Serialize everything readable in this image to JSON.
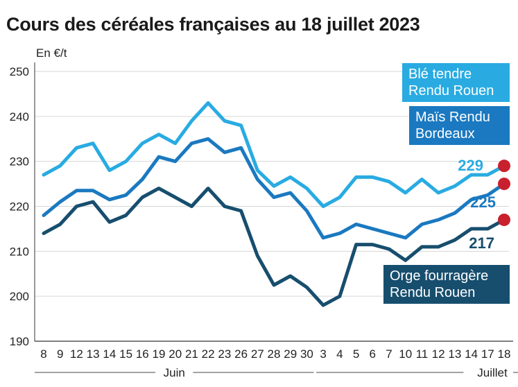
{
  "chart_data": {
    "type": "line",
    "title": "Cours des céréales françaises au 18 juillet 2023",
    "ylabel": "En €/t",
    "ylim": [
      190,
      250
    ],
    "yticks": [
      190,
      200,
      210,
      220,
      230,
      240,
      250
    ],
    "grid": true,
    "categories": [
      "8",
      "9",
      "12",
      "13",
      "14",
      "15",
      "16",
      "19",
      "20",
      "21",
      "22",
      "23",
      "26",
      "27",
      "28",
      "29",
      "30",
      "3",
      "4",
      "5",
      "6",
      "7",
      "10",
      "11",
      "12",
      "13",
      "14",
      "17",
      "18"
    ],
    "months": [
      {
        "label": "Juin",
        "from": 0,
        "to": 16
      },
      {
        "label": "Juillet",
        "from": 17,
        "to": 28
      }
    ],
    "series": [
      {
        "name": "Blé tendre Rendu Rouen",
        "color": "#29abe2",
        "label_lines": [
          "Blé tendre",
          "Rendu Rouen"
        ],
        "end_label": "229",
        "values": [
          227,
          229,
          233,
          234,
          228,
          230,
          234,
          236,
          234,
          239,
          243,
          239,
          238,
          228,
          224.5,
          226.5,
          224,
          220,
          222,
          226.5,
          226.5,
          225.5,
          223,
          226,
          223,
          224.5,
          227,
          227,
          229
        ]
      },
      {
        "name": "Maïs Rendu Bordeaux",
        "color": "#1a79c0",
        "label_lines": [
          "Maïs Rendu",
          "Bordeaux"
        ],
        "end_label": "225",
        "values": [
          218,
          221,
          223.5,
          223.5,
          221.5,
          222.5,
          226,
          231,
          230,
          234,
          235,
          232,
          233,
          226,
          222,
          223,
          219,
          213,
          214,
          216,
          215,
          214,
          213,
          216,
          217,
          218.5,
          221.5,
          222.5,
          225
        ]
      },
      {
        "name": "Orge fourragère Rendu Rouen",
        "color": "#174e6e",
        "label_lines": [
          "Orge fourragère",
          "Rendu Rouen"
        ],
        "end_label": "217",
        "values": [
          214,
          216,
          220,
          221,
          216.5,
          218,
          222,
          224,
          222,
          220,
          224,
          220,
          219,
          209,
          202.5,
          204.5,
          202,
          198,
          200,
          211.5,
          211.5,
          210.5,
          208,
          211,
          211,
          212.5,
          215,
          215,
          217
        ]
      }
    ],
    "end_marker_color": "#c9202e"
  }
}
